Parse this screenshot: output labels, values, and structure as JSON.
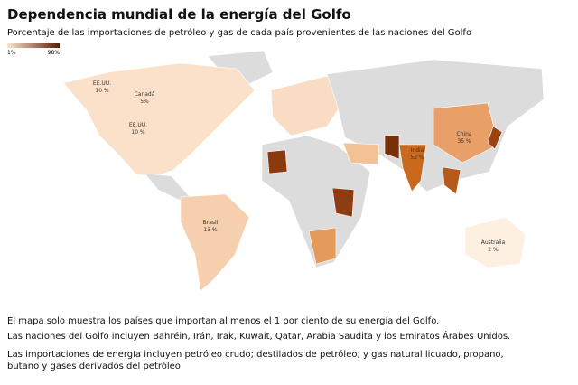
{
  "header": {
    "title": "Dependencia mundial de la energía del Golfo",
    "subtitle": "Porcentaje de las importaciones de petróleo y gas de cada país provenientes de las naciones del Golfo"
  },
  "legend": {
    "min_label": "1%",
    "max_label": "98%"
  },
  "map": {
    "labels": [
      {
        "name": "EE.UU.",
        "value": "10 %"
      },
      {
        "name": "Canadá",
        "value": "5%"
      },
      {
        "name": "EE.UU.",
        "value": "10 %"
      },
      {
        "name": "China",
        "value": "35 %"
      },
      {
        "name": "India",
        "value": "52 %"
      },
      {
        "name": "Brasil",
        "value": "13 %"
      },
      {
        "name": "Australia",
        "value": "2 %"
      }
    ]
  },
  "notes": [
    "El mapa solo muestra los países que importan al menos el 1 por ciento de su energía del Golfo.",
    "Las naciones del Golfo incluyen Bahréin, Irán, Irak, Kuwait, Qatar, Arabia Saudita y los Emiratos Árabes Unidos.",
    "Las importaciones de energía incluyen petróleo crudo; destilados de petróleo; y gas natural licuado, propano, butano y gases derivados del petróleo"
  ]
}
